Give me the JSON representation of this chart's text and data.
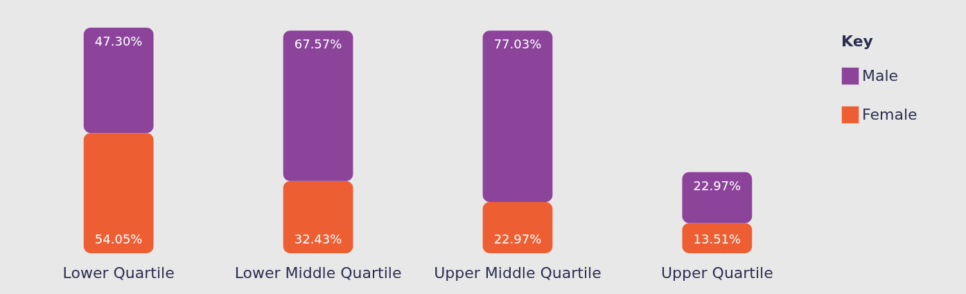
{
  "chart_data": {
    "type": "bar",
    "stacked": true,
    "categories": [
      "Lower Quartile",
      "Lower Middle Quartile",
      "Upper Middle Quartile",
      "Upper Quartile"
    ],
    "legend_title": "Key",
    "legend": "top right",
    "grid": false,
    "series": [
      {
        "name": "Female",
        "color": "#ee5e33",
        "values": [
          54.05,
          32.43,
          22.97,
          13.51
        ],
        "value_labels": [
          "54.05%",
          "32.43%",
          "22.97%",
          "13.51%"
        ]
      },
      {
        "name": "Male",
        "color": "#8b449a",
        "values": [
          47.3,
          67.57,
          77.03,
          22.97
        ],
        "value_labels": [
          "47.30%",
          "67.57%",
          "77.03%",
          "22.97%"
        ]
      }
    ]
  }
}
